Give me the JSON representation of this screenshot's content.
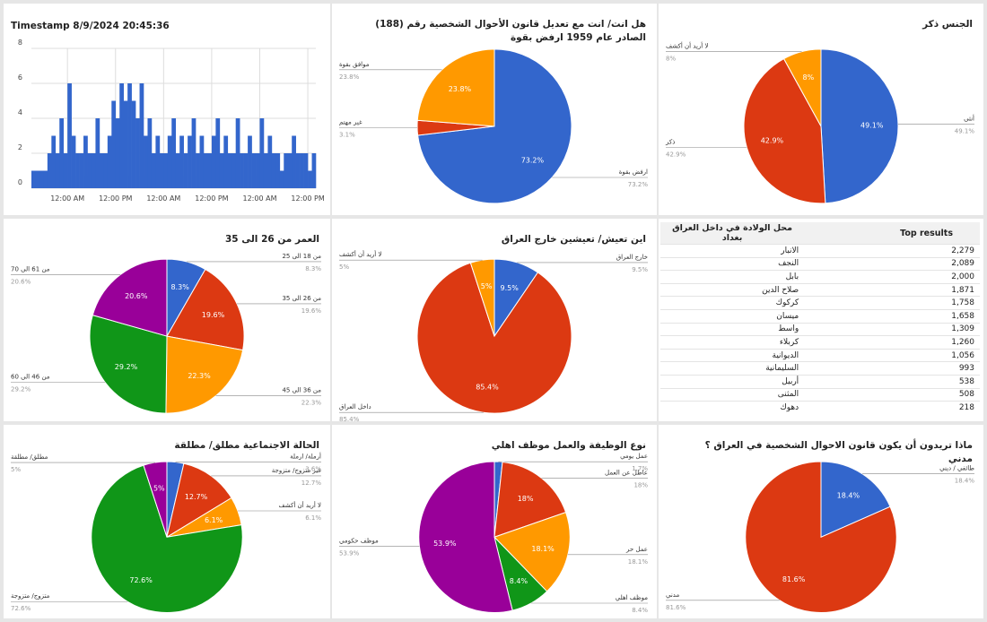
{
  "chart_data": [
    {
      "type": "area",
      "title": "Timestamp 8/9/2024 20:45:36",
      "color": "#3366cc",
      "x": [
        0,
        1,
        2,
        3,
        4,
        5,
        6,
        7,
        8,
        9,
        10,
        11,
        12,
        13,
        14,
        15,
        16,
        17,
        18,
        19,
        20,
        21,
        22,
        23,
        24,
        25,
        26,
        27,
        28,
        29,
        30,
        31,
        32,
        33,
        34,
        35,
        36,
        37,
        38,
        39,
        40,
        41,
        42,
        43,
        44,
        45,
        46,
        47,
        48,
        49,
        50,
        51,
        52,
        53,
        54,
        55,
        56,
        57,
        58,
        59,
        60,
        61,
        62,
        63,
        64,
        65,
        66,
        67,
        68,
        69,
        70
      ],
      "values": [
        1,
        1,
        1,
        1,
        2,
        3,
        2,
        4,
        2,
        6,
        3,
        2,
        2,
        3,
        2,
        2,
        4,
        2,
        2,
        3,
        5,
        4,
        6,
        5,
        6,
        5,
        4,
        6,
        3,
        4,
        2,
        3,
        2,
        2,
        3,
        4,
        2,
        3,
        2,
        3,
        4,
        2,
        3,
        2,
        2,
        3,
        4,
        2,
        3,
        2,
        2,
        4,
        2,
        2,
        3,
        2,
        2,
        4,
        2,
        3,
        2,
        2,
        1,
        2,
        2,
        3,
        2,
        2,
        2,
        1,
        2
      ],
      "xlim": [
        0,
        71
      ],
      "xticks": [
        {
          "value": 9,
          "label": "12:00 AM"
        },
        {
          "value": 21,
          "label": "12:00 PM"
        },
        {
          "value": 33,
          "label": "12:00 AM"
        },
        {
          "value": 45,
          "label": "12:00 PM"
        },
        {
          "value": 57,
          "label": "12:00 AM"
        },
        {
          "value": 69,
          "label": "12:00 PM"
        }
      ],
      "ylim": [
        0,
        8
      ],
      "yticks": [
        0,
        2,
        4,
        6,
        8
      ],
      "grid": true
    },
    {
      "type": "pie",
      "title": "هل انت/ انت مع تعديل قانون الأحوال الشخصية رقم (188) الصادر عام 1959 ارفض بقوة",
      "categories": [
        "ارفض بقوة",
        "غير مهتم",
        "موافق بقوة"
      ],
      "values": [
        73.2,
        3.1,
        23.8
      ],
      "value_labels": [
        "73.2%",
        "3.1%",
        "23.8%"
      ],
      "colors": [
        "#3366cc",
        "#dc3912",
        "#ff9900"
      ]
    },
    {
      "type": "pie",
      "title": "الجنس ذكر",
      "categories": [
        "أنثى",
        "ذكر",
        "لا أريد أن أكشف"
      ],
      "values": [
        49.1,
        42.9,
        8
      ],
      "value_labels": [
        "49.1%",
        "42.9%",
        "8%"
      ],
      "colors": [
        "#3366cc",
        "#dc3912",
        "#ff9900"
      ]
    },
    {
      "type": "pie",
      "title": "العمر من 26 الى 35",
      "categories": [
        "من 18 الى 25",
        "من 26 الى 35",
        "من 36 الى 45",
        "من 46 الى 60",
        "من 61 الى 70"
      ],
      "values": [
        8.3,
        19.6,
        22.3,
        29.2,
        20.6
      ],
      "value_labels": [
        "8.3%",
        "19.6%",
        "22.3%",
        "29.2%",
        "20.6%"
      ],
      "colors": [
        "#3366cc",
        "#dc3912",
        "#ff9900",
        "#109618",
        "#990099"
      ]
    },
    {
      "type": "pie",
      "title": "اين تعيش/ تعيشين خارج العراق",
      "categories": [
        "خارج العراق",
        "داخل العراق",
        "لا أريد أن أكشف"
      ],
      "values": [
        9.5,
        85.4,
        5
      ],
      "value_labels": [
        "9.5%",
        "85.4%",
        "5%"
      ],
      "colors": [
        "#3366cc",
        "#dc3912",
        "#ff9900"
      ]
    },
    {
      "type": "pie",
      "title": "الحالة الاجتماعية مطلق/ مطلقة",
      "categories": [
        "أرملة/ ارملة",
        "غير متزوج/ متزوجة",
        "لا أريد أن أكشف",
        "متزوج/ متزوجة",
        "مطلق/ مطلقة"
      ],
      "values": [
        3.6,
        12.7,
        6.1,
        72.6,
        5
      ],
      "value_labels": [
        "3.6%",
        "12.7%",
        "6.1%",
        "72.6%",
        "5%"
      ],
      "colors": [
        "#3366cc",
        "#dc3912",
        "#ff9900",
        "#109618",
        "#990099"
      ]
    },
    {
      "type": "pie",
      "title": "نوع الوظيفة والعمل موظف اهلي",
      "categories": [
        "عمل يومي",
        "عاطل عن العمل",
        "عمل حر",
        "موظف اهلي",
        "موظف حكومي"
      ],
      "values": [
        1.7,
        18,
        18.1,
        8.4,
        53.9
      ],
      "value_labels": [
        "1.7%",
        "18%",
        "18.1%",
        "8.4%",
        "53.9%"
      ],
      "colors": [
        "#3366cc",
        "#dc3912",
        "#ff9900",
        "#109618",
        "#990099"
      ]
    },
    {
      "type": "pie",
      "title": "ماذا تريدون أن يكون قانون الاحوال الشخصية في العراق ؟ مدني",
      "categories": [
        "طائفي / ديني",
        "مدني"
      ],
      "values": [
        18.4,
        81.6
      ],
      "value_labels": [
        "18.4%",
        "81.6%"
      ],
      "colors": [
        "#3366cc",
        "#dc3912"
      ]
    }
  ],
  "table": {
    "header": [
      "محل الولادة في داخل العراق بغداد",
      "Top results"
    ],
    "rows": [
      [
        "الانبار",
        "2,279"
      ],
      [
        "النجف",
        "2,089"
      ],
      [
        "بابل",
        "2,000"
      ],
      [
        "صلاح الدين",
        "1,871"
      ],
      [
        "كركوك",
        "1,758"
      ],
      [
        "ميسان",
        "1,658"
      ],
      [
        "واسط",
        "1,309"
      ],
      [
        "كربلاء",
        "1,260"
      ],
      [
        "الديوانية",
        "1,056"
      ],
      [
        "السليمانية",
        "993"
      ],
      [
        "أربيل",
        "538"
      ],
      [
        "المثنى",
        "508"
      ],
      [
        "دهوك",
        "218"
      ]
    ]
  }
}
